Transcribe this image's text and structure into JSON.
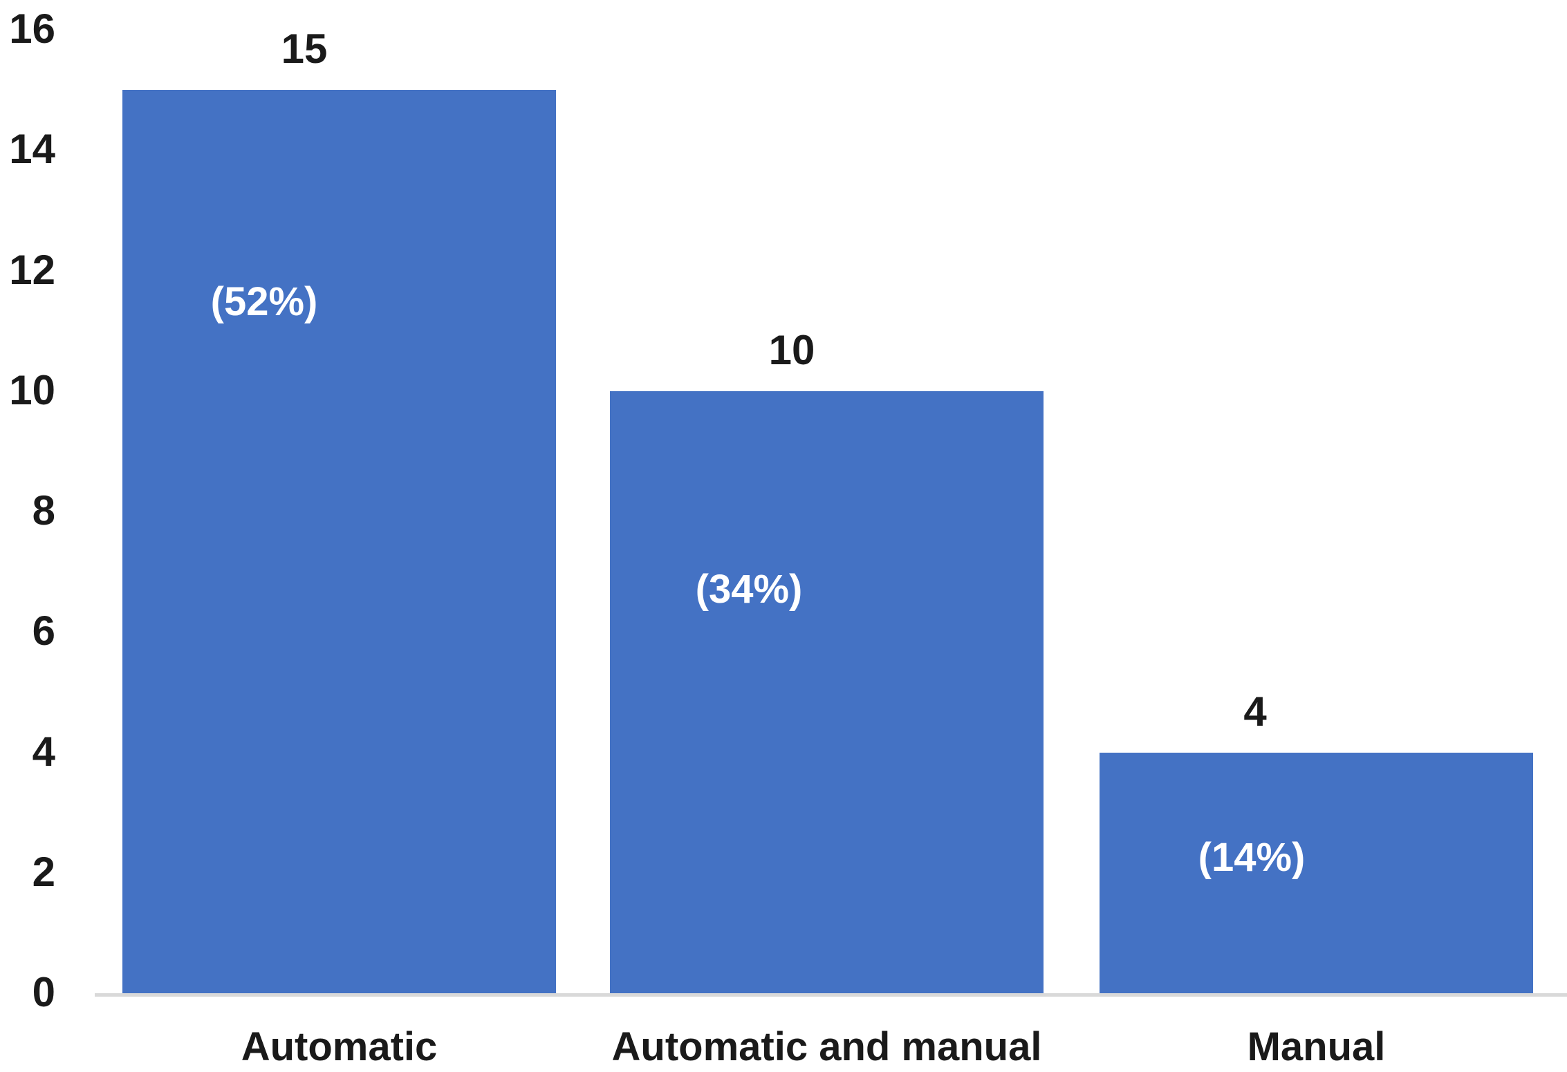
{
  "chart_data": {
    "type": "bar",
    "title": "",
    "xlabel": "",
    "ylabel": "",
    "categories": [
      "Automatic",
      "Automatic and manual",
      "Manual"
    ],
    "values": [
      15,
      10,
      4
    ],
    "value_labels": [
      "15",
      "10",
      "4"
    ],
    "percent_labels": [
      "(52%)",
      "(34%)",
      "(14%)"
    ],
    "ylim": [
      0,
      16
    ],
    "yticks": [
      0,
      2,
      4,
      6,
      8,
      10,
      12,
      14,
      16
    ],
    "grid": false,
    "legend": "none",
    "colors": {
      "bar": "#4472C4",
      "value_label": "#1a1a1a",
      "percent_label": "#ffffff",
      "tick_label": "#1a1a1a",
      "category_label": "#1a1a1a",
      "axis_line": "#d9d9d9",
      "background": "#ffffff"
    }
  }
}
